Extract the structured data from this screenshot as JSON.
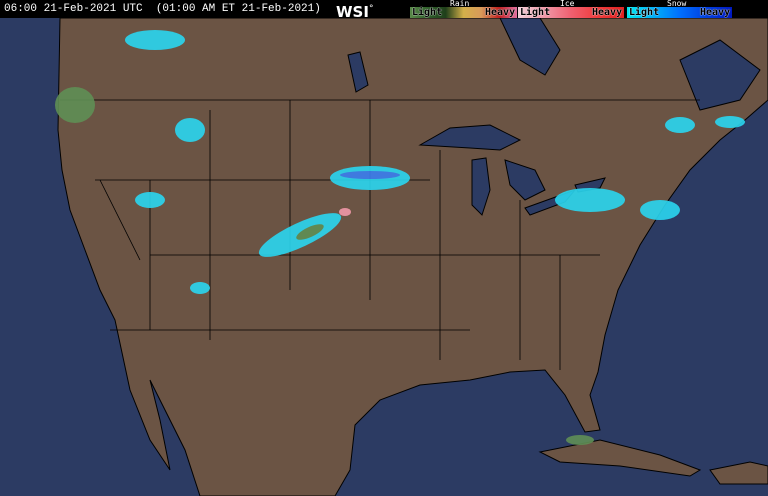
{
  "header": {
    "timestamp": "06:00 21-Feb-2021 UTC  (01:00 AM ET 21-Feb-2021)",
    "logo": "WSI",
    "logo_mark": "°"
  },
  "legend": [
    {
      "title": "Rain",
      "light": "Light",
      "heavy": "Heavy",
      "gradient": [
        "#5a8a4a",
        "#2e5e2a",
        "#1f3f1a",
        "#d4b04a",
        "#d89a5a",
        "#c02020",
        "#e070a0"
      ]
    },
    {
      "title": "Ice",
      "light": "Light",
      "heavy": "Heavy",
      "gradient": [
        "#f2d0d8",
        "#f098a8",
        "#f06070",
        "#f03c3c",
        "#e02020"
      ]
    },
    {
      "title": "Snow",
      "light": "Light",
      "heavy": "Heavy",
      "gradient": [
        "#00e8f0",
        "#00b0f8",
        "#0070ff",
        "#0040e0",
        "#0018c0"
      ]
    }
  ],
  "colors": {
    "land": "#6b5444",
    "water": "#2c3b63",
    "border": "#000000"
  }
}
